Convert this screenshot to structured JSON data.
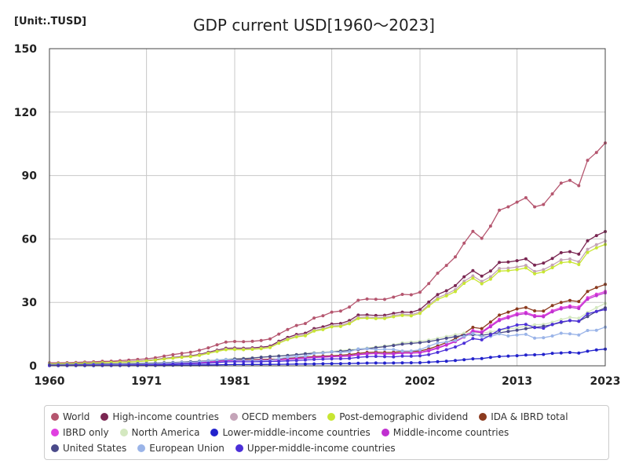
{
  "header": {
    "unit": "[Unit:.TUSD]",
    "title": "GDP current USD[1960〜2023]"
  },
  "chart_data": {
    "type": "line",
    "title": "GDP current USD[1960〜2023]",
    "unit": "[Unit:.TUSD]",
    "xlim": [
      1960,
      2023
    ],
    "ylim": [
      0,
      150
    ],
    "xticks": [
      "1960",
      "1971",
      "1981",
      "1992",
      "2002",
      "2013",
      "2023"
    ],
    "yticks": [
      "0",
      "30",
      "60",
      "90",
      "120",
      "150"
    ],
    "legend_position": "bottom",
    "years": [
      1960,
      1961,
      1962,
      1963,
      1964,
      1965,
      1966,
      1967,
      1968,
      1969,
      1970,
      1971,
      1972,
      1973,
      1974,
      1975,
      1976,
      1977,
      1978,
      1979,
      1980,
      1981,
      1982,
      1983,
      1984,
      1985,
      1986,
      1987,
      1988,
      1989,
      1990,
      1991,
      1992,
      1993,
      1994,
      1995,
      1996,
      1997,
      1998,
      1999,
      2000,
      2001,
      2002,
      2003,
      2004,
      2005,
      2006,
      2007,
      2008,
      2009,
      2010,
      2011,
      2012,
      2013,
      2014,
      2015,
      2016,
      2017,
      2018,
      2019,
      2020,
      2021,
      2022,
      2023
    ],
    "series": [
      {
        "name": "World",
        "color": "#b5566f",
        "values": [
          1.4,
          1.4,
          1.5,
          1.6,
          1.8,
          1.9,
          2.1,
          2.2,
          2.4,
          2.7,
          3.0,
          3.3,
          3.8,
          4.6,
          5.3,
          5.9,
          6.4,
          7.3,
          8.5,
          9.9,
          11.2,
          11.5,
          11.4,
          11.6,
          12.0,
          12.7,
          15.0,
          17.2,
          19.1,
          20.0,
          22.6,
          23.7,
          25.4,
          25.9,
          27.8,
          31.0,
          31.6,
          31.5,
          31.4,
          32.5,
          33.8,
          33.6,
          34.8,
          38.9,
          43.8,
          47.5,
          51.5,
          58.0,
          63.6,
          60.3,
          66.1,
          73.6,
          75.2,
          77.4,
          79.5,
          75.2,
          76.3,
          81.3,
          86.4,
          87.7,
          85.2,
          97.2,
          100.9,
          105.4
        ]
      },
      {
        "name": "High-income countries",
        "color": "#7a2652",
        "values": [
          1.0,
          1.1,
          1.1,
          1.2,
          1.3,
          1.4,
          1.6,
          1.7,
          1.8,
          2.0,
          2.2,
          2.5,
          2.9,
          3.5,
          3.9,
          4.4,
          4.7,
          5.4,
          6.4,
          7.4,
          8.3,
          8.4,
          8.3,
          8.5,
          8.8,
          9.3,
          11.6,
          13.4,
          14.8,
          15.4,
          17.6,
          18.4,
          19.8,
          20.0,
          21.4,
          24.0,
          24.1,
          23.8,
          23.9,
          24.8,
          25.4,
          25.3,
          26.6,
          30.2,
          33.7,
          35.5,
          37.9,
          42.1,
          45.0,
          42.4,
          44.8,
          48.9,
          49.1,
          49.7,
          50.6,
          47.6,
          48.6,
          50.8,
          53.5,
          54.0,
          52.8,
          59.1,
          61.6,
          63.5
        ]
      },
      {
        "name": "OECD members",
        "color": "#c4a4b8",
        "values": [
          1.0,
          1.0,
          1.1,
          1.2,
          1.3,
          1.4,
          1.5,
          1.6,
          1.7,
          1.9,
          2.1,
          2.4,
          2.8,
          3.3,
          3.7,
          4.2,
          4.5,
          5.1,
          6.1,
          7.0,
          7.9,
          8.0,
          7.9,
          8.1,
          8.4,
          8.8,
          11.0,
          12.7,
          14.1,
          14.6,
          16.8,
          17.5,
          18.9,
          19.1,
          20.5,
          22.9,
          23.1,
          22.8,
          22.9,
          23.8,
          24.4,
          24.2,
          25.4,
          28.9,
          32.2,
          33.9,
          36.0,
          40.0,
          42.5,
          39.9,
          42.1,
          46.0,
          46.2,
          46.7,
          47.5,
          44.6,
          45.5,
          47.6,
          50.1,
          50.5,
          49.2,
          55.1,
          57.3,
          59.0
        ]
      },
      {
        "name": "Post-demographic dividend",
        "color": "#c8e632",
        "values": [
          0.9,
          1.0,
          1.0,
          1.1,
          1.2,
          1.3,
          1.5,
          1.6,
          1.7,
          1.8,
          2.0,
          2.3,
          2.7,
          3.2,
          3.6,
          4.0,
          4.3,
          4.9,
          5.9,
          6.8,
          7.6,
          7.7,
          7.6,
          7.8,
          8.1,
          8.6,
          10.7,
          12.4,
          13.7,
          14.2,
          16.4,
          17.1,
          18.4,
          18.6,
          19.9,
          22.4,
          22.5,
          22.3,
          22.4,
          23.2,
          23.8,
          23.6,
          24.8,
          28.2,
          31.4,
          33.1,
          35.1,
          39.0,
          41.4,
          38.8,
          41.0,
          44.8,
          45.0,
          45.5,
          46.3,
          43.5,
          44.4,
          46.4,
          48.8,
          49.2,
          47.9,
          53.6,
          55.8,
          57.4
        ]
      },
      {
        "name": "IDA & IBRD total",
        "color": "#8b3a1e",
        "values": [
          0.4,
          0.4,
          0.4,
          0.4,
          0.5,
          0.5,
          0.5,
          0.5,
          0.6,
          0.6,
          0.7,
          0.8,
          0.9,
          1.1,
          1.3,
          1.5,
          1.6,
          1.8,
          2.0,
          2.3,
          2.7,
          2.9,
          2.9,
          2.9,
          3.0,
          3.1,
          3.2,
          3.5,
          3.8,
          4.1,
          4.4,
          4.6,
          4.8,
          5.0,
          5.3,
          5.9,
          6.3,
          6.5,
          6.3,
          6.4,
          6.8,
          6.8,
          7.0,
          8.0,
          9.4,
          11.0,
          12.8,
          15.3,
          18.2,
          17.6,
          20.7,
          24.0,
          25.4,
          26.9,
          27.6,
          26.0,
          25.9,
          28.5,
          30.0,
          30.9,
          30.4,
          35.2,
          37.0,
          38.5
        ]
      },
      {
        "name": "IBRD only",
        "color": "#e040e0",
        "values": [
          0.35,
          0.35,
          0.35,
          0.35,
          0.4,
          0.45,
          0.45,
          0.45,
          0.5,
          0.55,
          0.6,
          0.7,
          0.8,
          1.0,
          1.2,
          1.3,
          1.4,
          1.6,
          1.8,
          2.1,
          2.5,
          2.6,
          2.6,
          2.6,
          2.7,
          2.8,
          2.9,
          3.2,
          3.5,
          3.8,
          4.0,
          4.2,
          4.4,
          4.6,
          4.8,
          5.4,
          5.8,
          5.9,
          5.7,
          5.8,
          6.2,
          6.2,
          6.4,
          7.3,
          8.6,
          10.1,
          11.7,
          14.0,
          16.7,
          16.1,
          19.0,
          22.0,
          23.3,
          24.7,
          25.3,
          23.8,
          23.7,
          26.1,
          27.5,
          28.3,
          27.8,
          32.2,
          33.9,
          35.2
        ]
      },
      {
        "name": "North America",
        "color": "#d4e8c0",
        "values": [
          0.6,
          0.6,
          0.7,
          0.7,
          0.7,
          0.8,
          0.9,
          0.9,
          1.0,
          1.1,
          1.2,
          1.2,
          1.4,
          1.5,
          1.6,
          1.8,
          2.0,
          2.2,
          2.5,
          2.8,
          3.1,
          3.4,
          3.6,
          3.8,
          4.2,
          4.5,
          4.8,
          5.0,
          5.4,
          5.8,
          6.2,
          6.4,
          6.8,
          7.2,
          7.6,
          8.0,
          8.4,
          8.9,
          9.4,
          9.9,
          10.9,
          11.2,
          11.6,
          12.2,
          13.0,
          13.9,
          14.7,
          15.4,
          15.8,
          15.4,
          16.1,
          16.7,
          17.4,
          18.0,
          18.7,
          19.4,
          19.6,
          20.6,
          21.9,
          22.9,
          22.5,
          25.3,
          27.5,
          29.5
        ]
      },
      {
        "name": "Lower-middle-income countries",
        "color": "#2222cc",
        "values": [
          0.1,
          0.1,
          0.1,
          0.1,
          0.1,
          0.12,
          0.13,
          0.14,
          0.15,
          0.16,
          0.17,
          0.18,
          0.2,
          0.24,
          0.3,
          0.33,
          0.36,
          0.4,
          0.45,
          0.5,
          0.55,
          0.58,
          0.6,
          0.62,
          0.64,
          0.66,
          0.7,
          0.75,
          0.8,
          0.85,
          0.9,
          0.95,
          1.0,
          1.05,
          1.1,
          1.2,
          1.3,
          1.35,
          1.3,
          1.35,
          1.4,
          1.45,
          1.5,
          1.7,
          1.95,
          2.2,
          2.5,
          2.9,
          3.3,
          3.4,
          4.0,
          4.4,
          4.6,
          4.8,
          5.1,
          5.2,
          5.4,
          5.9,
          6.1,
          6.3,
          6.0,
          6.9,
          7.5,
          7.9
        ]
      },
      {
        "name": "Middle-income countries",
        "color": "#c030d0",
        "values": [
          0.3,
          0.3,
          0.3,
          0.35,
          0.4,
          0.4,
          0.45,
          0.45,
          0.5,
          0.55,
          0.6,
          0.65,
          0.75,
          0.9,
          1.1,
          1.25,
          1.35,
          1.5,
          1.7,
          2.0,
          2.4,
          2.5,
          2.5,
          2.5,
          2.6,
          2.7,
          2.8,
          3.1,
          3.3,
          3.6,
          3.9,
          4.1,
          4.3,
          4.4,
          4.6,
          5.2,
          5.6,
          5.8,
          5.6,
          5.6,
          6.0,
          6.0,
          6.2,
          7.0,
          8.3,
          9.8,
          11.4,
          13.6,
          16.2,
          15.7,
          18.5,
          21.4,
          22.7,
          24.1,
          24.7,
          23.3,
          23.2,
          25.5,
          26.9,
          27.7,
          27.1,
          31.5,
          33.2,
          34.5
        ]
      },
      {
        "name": "United States",
        "color": "#4a4a8a",
        "values": [
          0.54,
          0.56,
          0.6,
          0.64,
          0.69,
          0.74,
          0.81,
          0.86,
          0.94,
          1.02,
          1.07,
          1.16,
          1.28,
          1.43,
          1.55,
          1.69,
          1.88,
          2.09,
          2.36,
          2.63,
          2.86,
          3.21,
          3.34,
          3.64,
          4.04,
          4.35,
          4.59,
          4.87,
          5.25,
          5.66,
          5.96,
          6.16,
          6.52,
          6.86,
          7.29,
          7.64,
          8.07,
          8.58,
          9.06,
          9.63,
          10.25,
          10.58,
          10.94,
          11.46,
          12.21,
          13.04,
          13.82,
          14.45,
          14.71,
          14.45,
          15.05,
          15.6,
          16.25,
          16.84,
          17.55,
          18.21,
          18.7,
          19.48,
          20.53,
          21.38,
          21.06,
          23.32,
          25.74,
          27.36
        ]
      },
      {
        "name": "European Union",
        "color": "#9ab4e8",
        "values": [
          0.3,
          0.32,
          0.35,
          0.38,
          0.42,
          0.46,
          0.5,
          0.54,
          0.58,
          0.64,
          0.72,
          0.8,
          0.95,
          1.2,
          1.35,
          1.55,
          1.65,
          1.85,
          2.25,
          2.7,
          3.0,
          2.7,
          2.6,
          2.5,
          2.4,
          2.5,
          3.4,
          4.1,
          4.5,
          4.6,
          5.9,
          6.1,
          6.7,
          6.3,
          6.7,
          8.0,
          8.1,
          7.6,
          7.8,
          7.7,
          7.0,
          7.0,
          7.6,
          9.3,
          10.8,
          11.3,
          12.0,
          13.8,
          15.3,
          13.8,
          13.9,
          15.1,
          14.1,
          14.6,
          14.9,
          13.1,
          13.3,
          14.1,
          15.4,
          15.1,
          14.6,
          16.7,
          16.8,
          18.3
        ]
      },
      {
        "name": "Upper-middle-income countries",
        "color": "#4b2fd8",
        "values": [
          0.2,
          0.2,
          0.2,
          0.25,
          0.3,
          0.3,
          0.32,
          0.32,
          0.35,
          0.39,
          0.43,
          0.47,
          0.55,
          0.66,
          0.8,
          0.92,
          0.99,
          1.1,
          1.25,
          1.5,
          1.85,
          1.92,
          1.9,
          1.88,
          1.96,
          2.04,
          2.1,
          2.35,
          2.5,
          2.75,
          3.0,
          3.15,
          3.3,
          3.35,
          3.5,
          4.0,
          4.3,
          4.45,
          4.3,
          4.25,
          4.6,
          4.55,
          4.7,
          5.3,
          6.35,
          7.6,
          8.9,
          10.7,
          12.9,
          12.3,
          14.5,
          17.0,
          18.1,
          19.3,
          19.6,
          18.1,
          17.8,
          19.6,
          20.8,
          21.4,
          21.1,
          24.6,
          25.7,
          26.6
        ]
      }
    ]
  }
}
